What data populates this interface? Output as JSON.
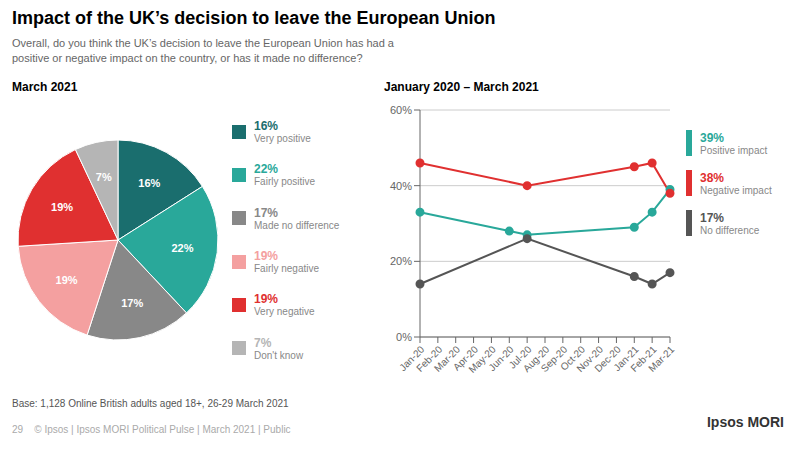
{
  "title": "Impact of the UK’s decision to leave the European Union",
  "subtitle": "Overall, do you think the UK’s decision to leave the European Union has had a\npositive or negative impact on the country, or has it made no difference?",
  "annotations": [
    "Base: 1,128 Online British adults aged 18+, 26-29 March 2021",
    "29    © Ipsos | Ipsos MORI Political Pulse | March 2021 | Public",
    "Ipsos MORI"
  ],
  "chart_data": [
    {
      "type": "pie",
      "title": "March 2021",
      "categories": [
        "Very positive",
        "Fairly positive",
        "Made no difference",
        "Fairly negative",
        "Very negative",
        "Don't know"
      ],
      "values": [
        16,
        22,
        17,
        19,
        19,
        7
      ],
      "value_labels": [
        "16%",
        "22%",
        "17%",
        "19%",
        "19%",
        "7%"
      ],
      "colors": [
        "#1a6e6e",
        "#29a89a",
        "#888888",
        "#f4a0a0",
        "#e03030",
        "#b5b5b5"
      ],
      "data_labels": true,
      "legend": "right"
    },
    {
      "type": "line",
      "title": "January 2020 – March 2021",
      "categories": [
        "Jan-20",
        "Feb-20",
        "Mar-20",
        "Apr-20",
        "May-20",
        "Jun-20",
        "Jul-20",
        "Aug-20",
        "Sep-20",
        "Oct-20",
        "Nov-20",
        "Dec-20",
        "Jan-21",
        "Feb-21",
        "Mar-21"
      ],
      "ylim": [
        0,
        60
      ],
      "yticks": [
        {
          "value": 0,
          "label": "0%"
        },
        {
          "value": 20,
          "label": "20%"
        },
        {
          "value": 40,
          "label": "40%"
        },
        {
          "value": 60,
          "label": "60%"
        }
      ],
      "grid": true,
      "marker": "circle",
      "legend": "right",
      "series": [
        {
          "name": "Positive impact",
          "color": "#29a89a",
          "values": [
            33,
            null,
            null,
            null,
            null,
            28,
            27,
            null,
            null,
            null,
            null,
            null,
            29,
            33,
            39
          ],
          "value_labels": [
            null,
            null,
            null,
            null,
            null,
            null,
            null,
            null,
            null,
            null,
            null,
            null,
            null,
            null,
            "39%"
          ]
        },
        {
          "name": "Negative impact",
          "color": "#e03030",
          "values": [
            46,
            null,
            null,
            null,
            null,
            null,
            40,
            null,
            null,
            null,
            null,
            null,
            45,
            46,
            38
          ],
          "value_labels": [
            null,
            null,
            null,
            null,
            null,
            null,
            null,
            null,
            null,
            null,
            null,
            null,
            null,
            null,
            "38%"
          ]
        },
        {
          "name": "No difference",
          "color": "#555555",
          "values": [
            14,
            null,
            null,
            null,
            null,
            null,
            26,
            null,
            null,
            null,
            null,
            null,
            16,
            14,
            17
          ],
          "value_labels": [
            null,
            null,
            null,
            null,
            null,
            null,
            null,
            null,
            null,
            null,
            null,
            null,
            null,
            null,
            "17%"
          ]
        }
      ]
    }
  ]
}
